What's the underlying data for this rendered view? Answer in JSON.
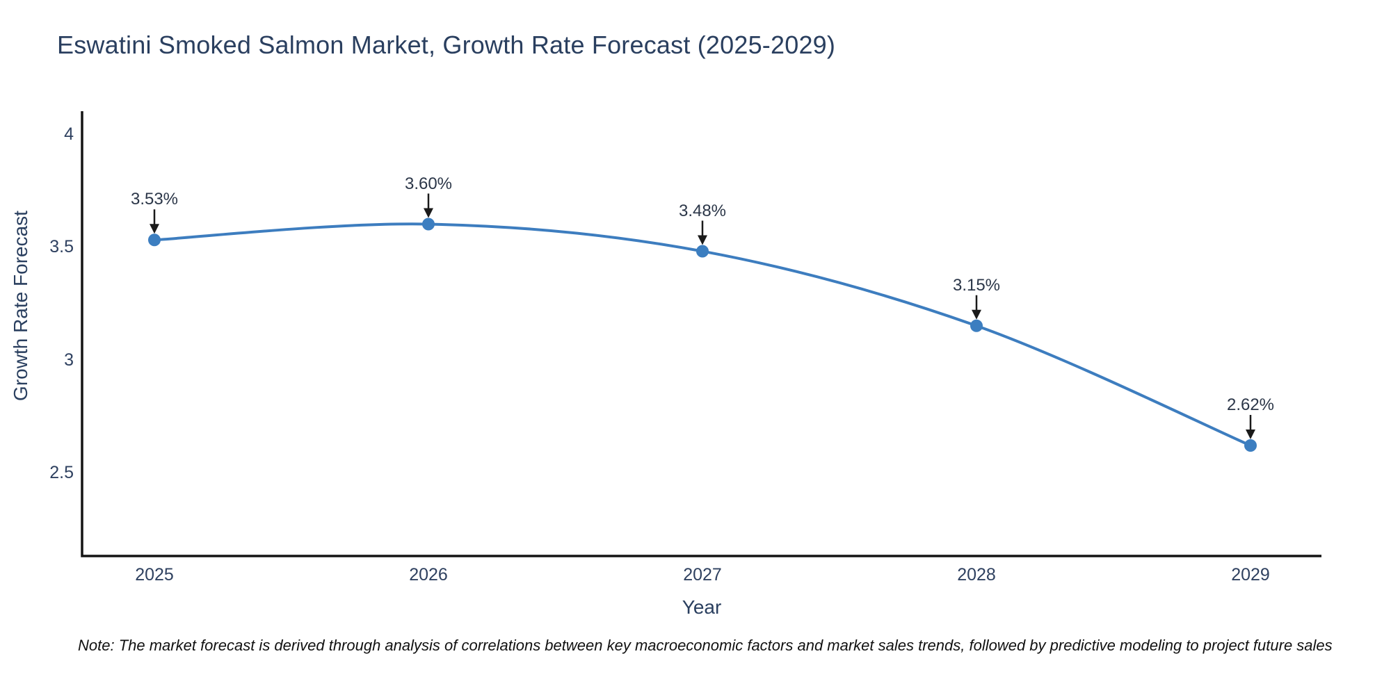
{
  "title": "Eswatini Smoked Salmon Market, Growth Rate Forecast (2025-2029)",
  "note": "Note: The market forecast is derived through analysis of correlations between key macroeconomic factors and market sales trends, followed by predictive modeling to project future sales",
  "chart_data": {
    "type": "line",
    "title": "Eswatini Smoked Salmon Market, Growth Rate Forecast (2025-2029)",
    "x": [
      2025,
      2026,
      2027,
      2028,
      2029
    ],
    "values": [
      3.53,
      3.6,
      3.48,
      3.15,
      2.62
    ],
    "point_labels": [
      "3.53%",
      "3.60%",
      "3.48%",
      "3.15%",
      "2.62%"
    ],
    "x_tick_labels": [
      "2025",
      "2026",
      "2027",
      "2028",
      "2029"
    ],
    "y_tick_values": [
      4,
      3.5,
      3,
      2.5
    ],
    "y_tick_labels": [
      "4",
      "3.5",
      "3",
      "2.5"
    ],
    "xlabel": "Year",
    "ylabel": "Growth Rate Forecast",
    "ylim": [
      2.1,
      4.1
    ],
    "grid": false,
    "legend": false,
    "line_shape": "spline",
    "annotations_have_arrows": true,
    "colors": {
      "line": "#3d7dbf",
      "marker": "#3c7ec0",
      "axis_line": "#141414",
      "arrow": "#1a1a1a",
      "title_text": "#2a3f5f",
      "tick_text": "#2f4160"
    }
  }
}
